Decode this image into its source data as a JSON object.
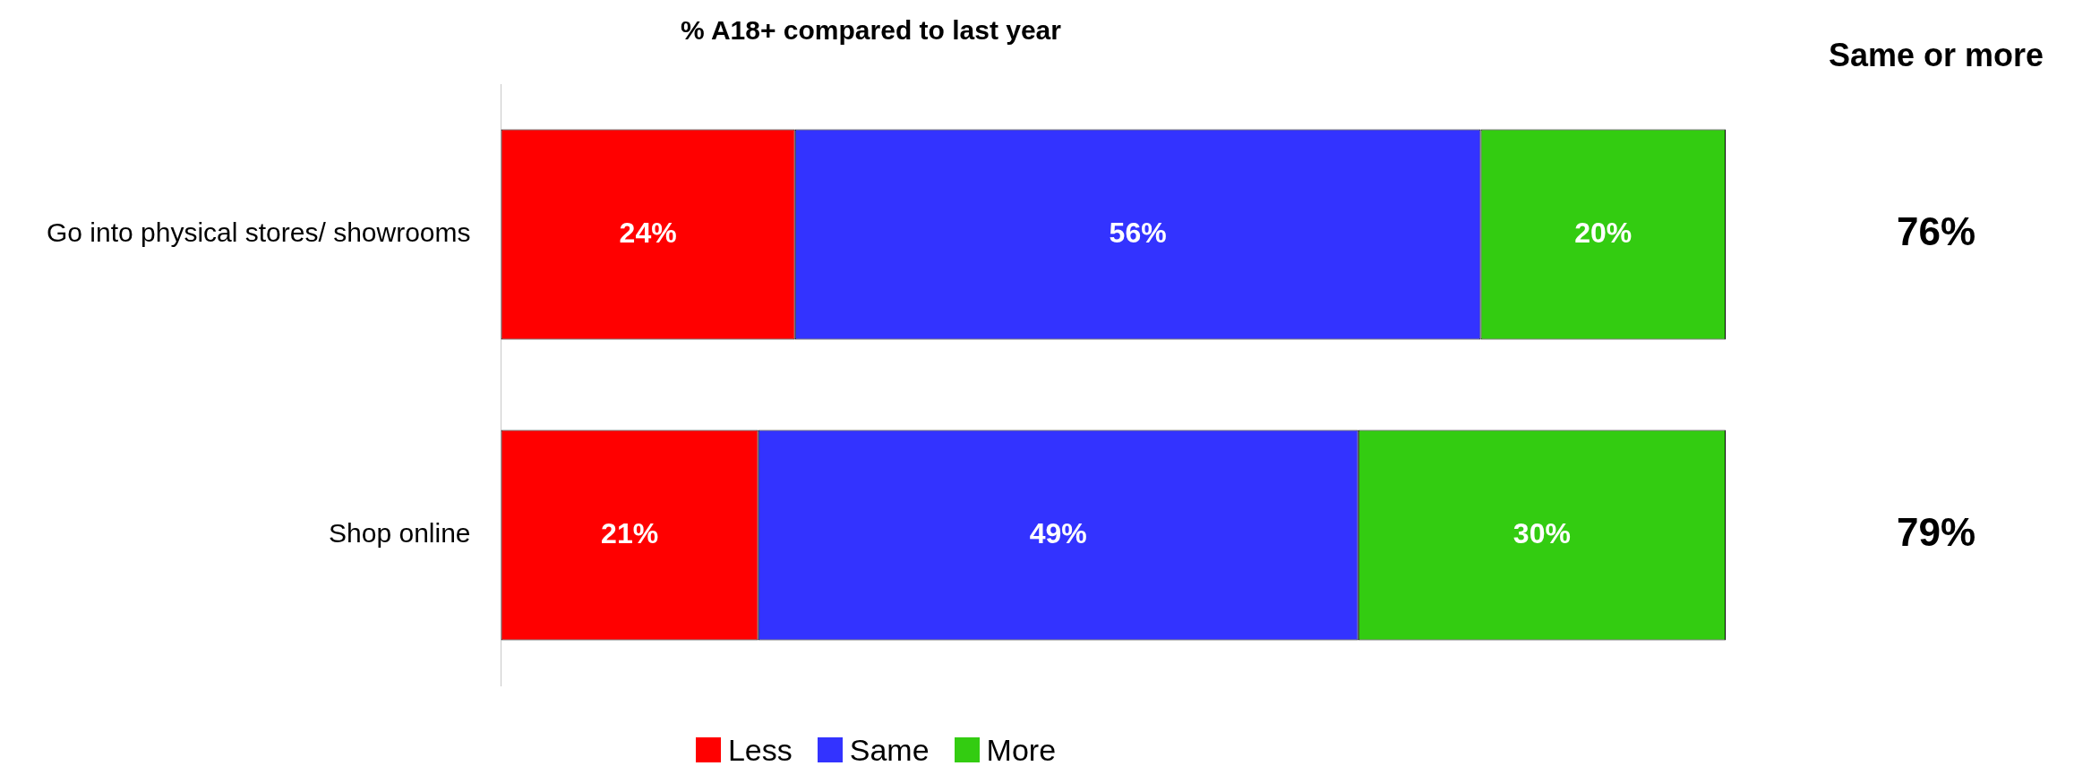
{
  "chart_data": {
    "type": "bar",
    "orientation": "horizontal",
    "stacked": true,
    "title": "% A18+ compared to last year",
    "categories": [
      "Go into physical stores/ showrooms",
      "Shop online"
    ],
    "series": [
      {
        "name": "Less",
        "color": "#ff0000",
        "values": [
          24,
          21
        ],
        "value_labels": [
          "24%",
          "21%"
        ]
      },
      {
        "name": "Same",
        "color": "#3333ff",
        "values": [
          56,
          49
        ],
        "value_labels": [
          "56%",
          "49%"
        ]
      },
      {
        "name": "More",
        "color": "#33cc11",
        "values": [
          20,
          30
        ],
        "value_labels": [
          "20%",
          "30%"
        ]
      }
    ],
    "xlim": [
      0,
      100
    ],
    "tick_labels": "y",
    "grid": false,
    "legend": "bottom",
    "annotations": [
      "Same or more",
      "76%",
      "79%"
    ]
  }
}
